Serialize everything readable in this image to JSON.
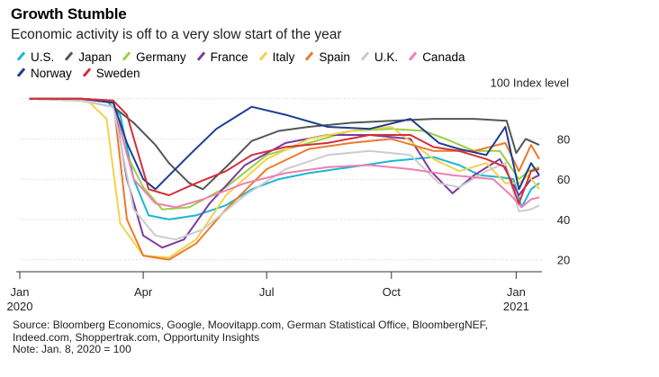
{
  "title": "Growth Stumble",
  "subtitle": "Economic activity is off to a very slow start of the year",
  "chart_data": {
    "type": "line",
    "title": "Growth Stumble",
    "subtitle": "Economic activity is off to a very slow start of the year",
    "ylabel": "100 Index level",
    "ylim": [
      14,
      103
    ],
    "yticks": [
      20,
      40,
      60,
      80
    ],
    "ytick_labels": [
      "20",
      "40",
      "60",
      "80"
    ],
    "grid": true,
    "legend_position": "top-left",
    "x_range": [
      "2020-01-01",
      "2021-01-20"
    ],
    "xticks": [
      {
        "date": "2020-01-01",
        "label": "Jan",
        "sublabel": "2020"
      },
      {
        "date": "2020-04-01",
        "label": "Apr",
        "sublabel": ""
      },
      {
        "date": "2020-07-01",
        "label": "Jul",
        "sublabel": ""
      },
      {
        "date": "2020-10-01",
        "label": "Oct",
        "sublabel": ""
      },
      {
        "date": "2021-01-01",
        "label": "Jan",
        "sublabel": "2021"
      }
    ],
    "series": [
      {
        "name": "U.S.",
        "color": "#1ab7d6",
        "points": [
          [
            "2020-01-08",
            100
          ],
          [
            "2020-02-15",
            100
          ],
          [
            "2020-03-05",
            99
          ],
          [
            "2020-03-15",
            92
          ],
          [
            "2020-03-25",
            60
          ],
          [
            "2020-04-05",
            42
          ],
          [
            "2020-04-20",
            40
          ],
          [
            "2020-05-10",
            42
          ],
          [
            "2020-06-01",
            47
          ],
          [
            "2020-06-20",
            55
          ],
          [
            "2020-07-10",
            60
          ],
          [
            "2020-08-01",
            63
          ],
          [
            "2020-09-01",
            66
          ],
          [
            "2020-10-01",
            69
          ],
          [
            "2020-11-01",
            71
          ],
          [
            "2020-11-20",
            67
          ],
          [
            "2020-12-05",
            62
          ],
          [
            "2020-12-20",
            61
          ],
          [
            "2020-12-30",
            60
          ],
          [
            "2021-01-05",
            46
          ],
          [
            "2021-01-12",
            55
          ],
          [
            "2021-01-18",
            58
          ]
        ]
      },
      {
        "name": "Japan",
        "color": "#555555",
        "points": [
          [
            "2020-01-08",
            100
          ],
          [
            "2020-02-15",
            99
          ],
          [
            "2020-03-10",
            96
          ],
          [
            "2020-03-25",
            88
          ],
          [
            "2020-04-10",
            77
          ],
          [
            "2020-04-20",
            68
          ],
          [
            "2020-05-05",
            58
          ],
          [
            "2020-05-15",
            55
          ],
          [
            "2020-06-01",
            66
          ],
          [
            "2020-06-20",
            79
          ],
          [
            "2020-07-10",
            84
          ],
          [
            "2020-08-01",
            86
          ],
          [
            "2020-09-01",
            88
          ],
          [
            "2020-10-01",
            89
          ],
          [
            "2020-11-01",
            90
          ],
          [
            "2020-12-01",
            90
          ],
          [
            "2020-12-25",
            89
          ],
          [
            "2021-01-01",
            73
          ],
          [
            "2021-01-08",
            80
          ],
          [
            "2021-01-18",
            77
          ]
        ]
      },
      {
        "name": "Germany",
        "color": "#9bd03f",
        "points": [
          [
            "2020-01-08",
            100
          ],
          [
            "2020-02-15",
            100
          ],
          [
            "2020-03-10",
            99
          ],
          [
            "2020-03-20",
            72
          ],
          [
            "2020-04-01",
            56
          ],
          [
            "2020-04-15",
            45
          ],
          [
            "2020-05-05",
            46
          ],
          [
            "2020-06-01",
            56
          ],
          [
            "2020-07-01",
            72
          ],
          [
            "2020-08-01",
            78
          ],
          [
            "2020-09-01",
            84
          ],
          [
            "2020-10-01",
            85
          ],
          [
            "2020-10-25",
            84
          ],
          [
            "2020-11-10",
            80
          ],
          [
            "2020-12-01",
            74
          ],
          [
            "2020-12-20",
            74
          ],
          [
            "2021-01-03",
            60
          ],
          [
            "2021-01-10",
            64
          ],
          [
            "2021-01-18",
            66
          ]
        ]
      },
      {
        "name": "France",
        "color": "#7b3aa1",
        "points": [
          [
            "2020-01-08",
            100
          ],
          [
            "2020-02-15",
            100
          ],
          [
            "2020-03-10",
            99
          ],
          [
            "2020-03-20",
            60
          ],
          [
            "2020-04-01",
            32
          ],
          [
            "2020-04-15",
            26
          ],
          [
            "2020-05-01",
            30
          ],
          [
            "2020-05-20",
            48
          ],
          [
            "2020-06-15",
            67
          ],
          [
            "2020-07-15",
            78
          ],
          [
            "2020-08-15",
            82
          ],
          [
            "2020-09-15",
            82
          ],
          [
            "2020-10-15",
            80
          ],
          [
            "2020-10-30",
            64
          ],
          [
            "2020-11-15",
            53
          ],
          [
            "2020-12-01",
            62
          ],
          [
            "2020-12-20",
            70
          ],
          [
            "2021-01-03",
            52
          ],
          [
            "2021-01-12",
            60
          ],
          [
            "2021-01-18",
            62
          ]
        ]
      },
      {
        "name": "Italy",
        "color": "#f2d24a",
        "points": [
          [
            "2020-01-08",
            100
          ],
          [
            "2020-02-20",
            99
          ],
          [
            "2020-03-05",
            90
          ],
          [
            "2020-03-15",
            38
          ],
          [
            "2020-04-01",
            22
          ],
          [
            "2020-04-20",
            21
          ],
          [
            "2020-05-10",
            30
          ],
          [
            "2020-06-01",
            52
          ],
          [
            "2020-07-01",
            70
          ],
          [
            "2020-08-01",
            80
          ],
          [
            "2020-09-01",
            84
          ],
          [
            "2020-10-01",
            86
          ],
          [
            "2020-11-01",
            70
          ],
          [
            "2020-11-20",
            64
          ],
          [
            "2020-12-10",
            68
          ],
          [
            "2020-12-24",
            58
          ],
          [
            "2021-01-03",
            58
          ],
          [
            "2021-01-10",
            62
          ],
          [
            "2021-01-18",
            55
          ]
        ]
      },
      {
        "name": "Spain",
        "color": "#ec7a2c",
        "points": [
          [
            "2020-01-08",
            100
          ],
          [
            "2020-02-15",
            100
          ],
          [
            "2020-03-10",
            99
          ],
          [
            "2020-03-20",
            40
          ],
          [
            "2020-04-01",
            22
          ],
          [
            "2020-04-20",
            20
          ],
          [
            "2020-05-10",
            28
          ],
          [
            "2020-06-01",
            45
          ],
          [
            "2020-07-01",
            65
          ],
          [
            "2020-08-01",
            75
          ],
          [
            "2020-09-01",
            78
          ],
          [
            "2020-10-01",
            80
          ],
          [
            "2020-11-01",
            74
          ],
          [
            "2020-12-01",
            74
          ],
          [
            "2020-12-24",
            78
          ],
          [
            "2021-01-03",
            64
          ],
          [
            "2021-01-12",
            77
          ],
          [
            "2021-01-18",
            70
          ]
        ]
      },
      {
        "name": "U.K.",
        "color": "#cccccc",
        "points": [
          [
            "2020-01-08",
            100
          ],
          [
            "2020-02-15",
            99
          ],
          [
            "2020-03-10",
            96
          ],
          [
            "2020-03-25",
            45
          ],
          [
            "2020-04-10",
            32
          ],
          [
            "2020-04-25",
            30
          ],
          [
            "2020-05-15",
            35
          ],
          [
            "2020-06-15",
            52
          ],
          [
            "2020-07-15",
            65
          ],
          [
            "2020-08-15",
            72
          ],
          [
            "2020-09-15",
            74
          ],
          [
            "2020-10-15",
            72
          ],
          [
            "2020-11-05",
            58
          ],
          [
            "2020-11-20",
            56
          ],
          [
            "2020-12-10",
            64
          ],
          [
            "2020-12-24",
            68
          ],
          [
            "2021-01-03",
            44
          ],
          [
            "2021-01-12",
            45
          ],
          [
            "2021-01-18",
            47
          ]
        ]
      },
      {
        "name": "Canada",
        "color": "#ef7fb2",
        "points": [
          [
            "2020-01-08",
            100
          ],
          [
            "2020-02-15",
            100
          ],
          [
            "2020-03-10",
            98
          ],
          [
            "2020-03-25",
            60
          ],
          [
            "2020-04-10",
            48
          ],
          [
            "2020-04-25",
            46
          ],
          [
            "2020-05-15",
            50
          ],
          [
            "2020-06-15",
            58
          ],
          [
            "2020-07-15",
            63
          ],
          [
            "2020-08-15",
            66
          ],
          [
            "2020-09-15",
            67
          ],
          [
            "2020-10-15",
            65
          ],
          [
            "2020-11-15",
            62
          ],
          [
            "2020-12-15",
            60
          ],
          [
            "2020-12-28",
            52
          ],
          [
            "2021-01-05",
            46
          ],
          [
            "2021-01-12",
            50
          ],
          [
            "2021-01-18",
            51
          ]
        ]
      },
      {
        "name": "Norway",
        "color": "#1d3d8f",
        "points": [
          [
            "2020-01-08",
            100
          ],
          [
            "2020-02-15",
            100
          ],
          [
            "2020-03-10",
            98
          ],
          [
            "2020-03-20",
            78
          ],
          [
            "2020-04-01",
            60
          ],
          [
            "2020-04-10",
            55
          ],
          [
            "2020-05-05",
            72
          ],
          [
            "2020-05-25",
            85
          ],
          [
            "2020-06-20",
            96
          ],
          [
            "2020-07-15",
            92
          ],
          [
            "2020-08-15",
            86
          ],
          [
            "2020-09-15",
            85
          ],
          [
            "2020-10-15",
            90
          ],
          [
            "2020-11-05",
            78
          ],
          [
            "2020-11-20",
            75
          ],
          [
            "2020-12-10",
            72
          ],
          [
            "2020-12-24",
            86
          ],
          [
            "2021-01-03",
            55
          ],
          [
            "2021-01-12",
            68
          ],
          [
            "2021-01-18",
            62
          ]
        ]
      },
      {
        "name": "Sweden",
        "color": "#d33038",
        "points": [
          [
            "2020-01-08",
            100
          ],
          [
            "2020-02-15",
            100
          ],
          [
            "2020-03-10",
            99
          ],
          [
            "2020-03-20",
            92
          ],
          [
            "2020-04-05",
            55
          ],
          [
            "2020-04-20",
            52
          ],
          [
            "2020-05-10",
            58
          ],
          [
            "2020-06-01",
            64
          ],
          [
            "2020-06-20",
            72
          ],
          [
            "2020-07-15",
            76
          ],
          [
            "2020-08-15",
            78
          ],
          [
            "2020-09-15",
            82
          ],
          [
            "2020-10-15",
            82
          ],
          [
            "2020-11-01",
            76
          ],
          [
            "2020-11-20",
            74
          ],
          [
            "2020-12-10",
            70
          ],
          [
            "2020-12-24",
            66
          ],
          [
            "2021-01-03",
            48
          ],
          [
            "2021-01-12",
            64
          ],
          [
            "2021-01-18",
            65
          ]
        ]
      }
    ]
  },
  "footer": {
    "source": "Source: Bloomberg Economics, Google, Moovitapp.com, German Statistical Office, BloombergNEF,",
    "source_cont": "Indeed.com, Shoppertrak.com, Opportunity Insights",
    "note": "Note: Jan. 8, 2020 = 100"
  }
}
